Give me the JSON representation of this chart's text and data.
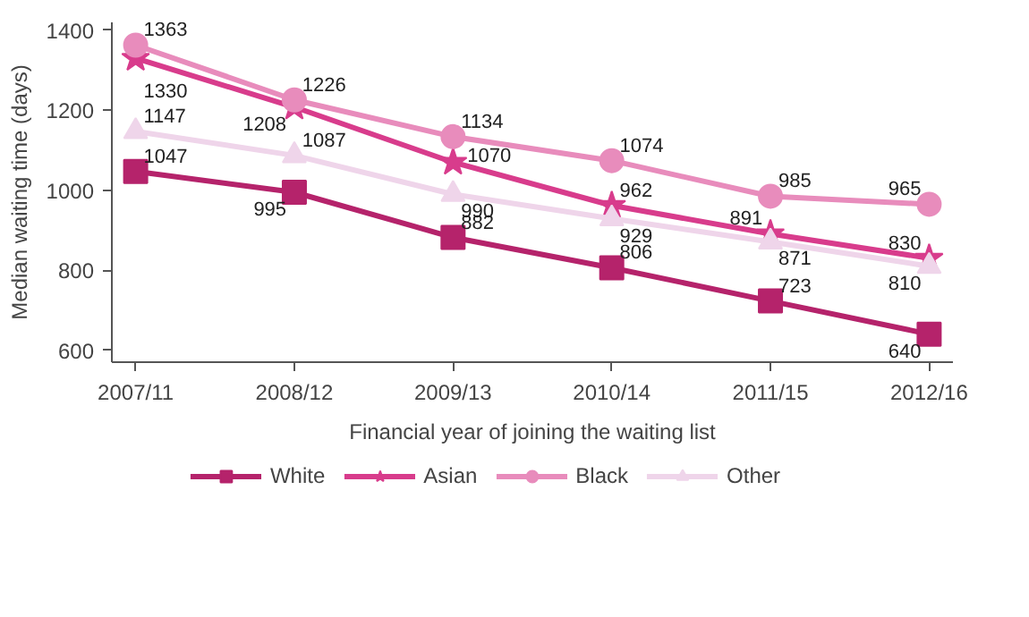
{
  "chart_data": {
    "type": "line",
    "xlabel": "Financial year of joining the waiting list",
    "ylabel": "Median waiting time (days)",
    "categories": [
      "2007/11",
      "2008/12",
      "2009/13",
      "2010/14",
      "2011/15",
      "2012/16"
    ],
    "series": [
      {
        "name": "White",
        "color": "#b5236b",
        "marker": "square",
        "values": [
          1047,
          995,
          882,
          806,
          723,
          640
        ]
      },
      {
        "name": "Asian",
        "color": "#d83c8c",
        "marker": "star",
        "values": [
          1330,
          1208,
          1070,
          962,
          891,
          830
        ]
      },
      {
        "name": "Black",
        "color": "#e88cbc",
        "marker": "circle",
        "values": [
          1363,
          1226,
          1134,
          1074,
          985,
          965
        ]
      },
      {
        "name": "Other",
        "color": "#efd5ea",
        "marker": "triangle",
        "values": [
          1147,
          1087,
          990,
          929,
          871,
          810
        ]
      }
    ],
    "ylim": [
      570,
      1420
    ],
    "yticks": [
      600,
      800,
      1000,
      1200,
      1400
    ],
    "grid": false,
    "legend": "bottom",
    "data_labels": true,
    "line_style": "solid"
  }
}
